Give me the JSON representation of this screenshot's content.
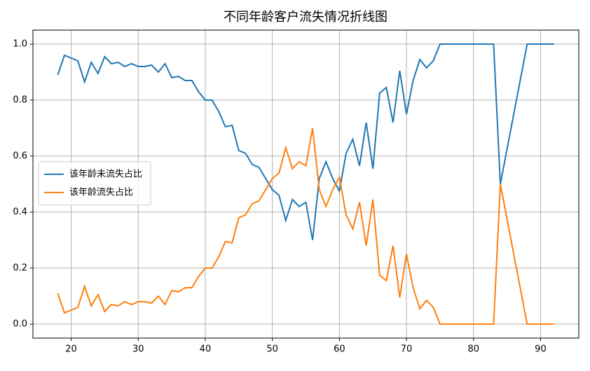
{
  "chart_data": {
    "type": "line",
    "title": "不同年龄客户流失情况折线图",
    "x": [
      18,
      19,
      20,
      21,
      22,
      23,
      24,
      25,
      26,
      27,
      28,
      29,
      30,
      31,
      32,
      33,
      34,
      35,
      36,
      37,
      38,
      39,
      40,
      41,
      42,
      43,
      44,
      45,
      46,
      47,
      48,
      49,
      50,
      51,
      52,
      53,
      54,
      55,
      56,
      57,
      58,
      59,
      60,
      61,
      62,
      63,
      64,
      65,
      66,
      67,
      68,
      69,
      70,
      71,
      72,
      73,
      74,
      75,
      76,
      77,
      78,
      79,
      80,
      81,
      82,
      83,
      84,
      88,
      92
    ],
    "series": [
      {
        "name": "该年龄未流失占比",
        "color": "#1f77b4",
        "values": [
          0.89,
          0.96,
          0.95,
          0.94,
          0.865,
          0.935,
          0.895,
          0.955,
          0.93,
          0.935,
          0.92,
          0.93,
          0.92,
          0.92,
          0.925,
          0.9,
          0.93,
          0.88,
          0.885,
          0.87,
          0.87,
          0.83,
          0.8,
          0.8,
          0.76,
          0.705,
          0.71,
          0.62,
          0.61,
          0.57,
          0.56,
          0.52,
          0.48,
          0.46,
          0.37,
          0.445,
          0.42,
          0.435,
          0.3,
          0.52,
          0.58,
          0.52,
          0.475,
          0.61,
          0.66,
          0.565,
          0.72,
          0.555,
          0.825,
          0.845,
          0.72,
          0.905,
          0.75,
          0.87,
          0.945,
          0.915,
          0.94,
          1,
          1,
          1,
          1,
          1,
          1,
          1,
          1,
          1,
          0.5,
          1,
          1
        ]
      },
      {
        "name": "该年龄流失占比",
        "color": "#ff7f0e",
        "values": [
          0.11,
          0.04,
          0.05,
          0.06,
          0.135,
          0.065,
          0.105,
          0.045,
          0.07,
          0.065,
          0.08,
          0.07,
          0.08,
          0.08,
          0.075,
          0.1,
          0.07,
          0.12,
          0.115,
          0.13,
          0.13,
          0.17,
          0.2,
          0.2,
          0.24,
          0.295,
          0.29,
          0.38,
          0.39,
          0.43,
          0.44,
          0.48,
          0.52,
          0.54,
          0.63,
          0.555,
          0.58,
          0.565,
          0.7,
          0.48,
          0.42,
          0.48,
          0.525,
          0.39,
          0.34,
          0.435,
          0.28,
          0.445,
          0.175,
          0.155,
          0.28,
          0.095,
          0.25,
          0.13,
          0.055,
          0.085,
          0.06,
          0,
          0,
          0,
          0,
          0,
          0,
          0,
          0,
          0,
          0.5,
          0,
          0
        ]
      }
    ],
    "xlim": [
      14.3,
      95.7
    ],
    "ylim": [
      -0.05,
      1.05
    ],
    "xticks": [
      20,
      30,
      40,
      50,
      60,
      70,
      80,
      90
    ],
    "yticks": [
      {
        "value": 0,
        "label": "0.0"
      },
      0.2,
      0.4,
      0.6,
      0.8,
      {
        "value": 1,
        "label": "1.0"
      }
    ],
    "grid": true,
    "legend": "center left"
  }
}
